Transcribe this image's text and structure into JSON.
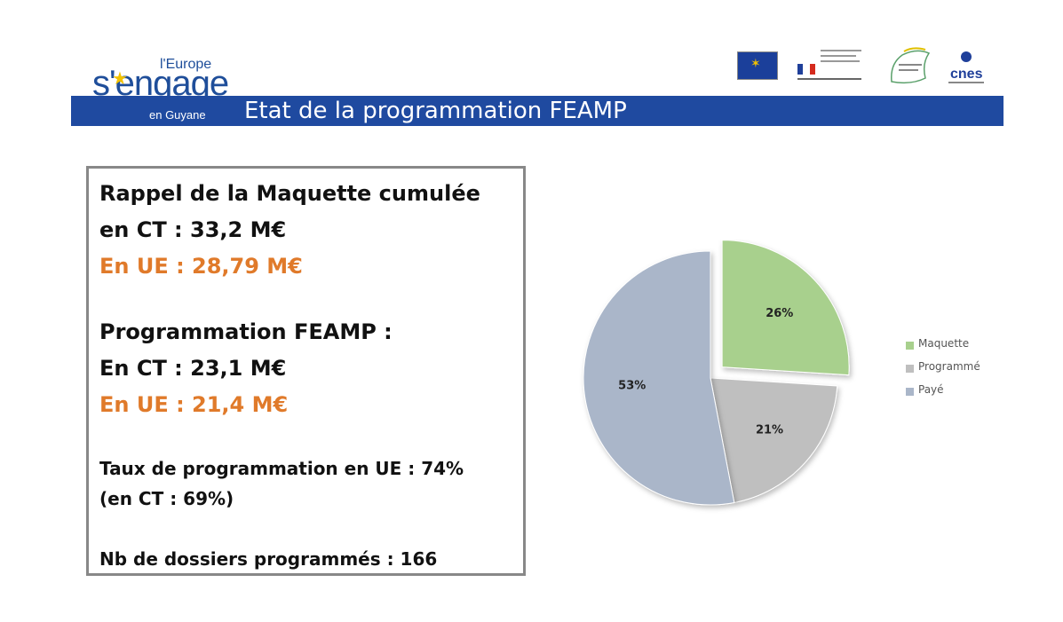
{
  "branding": {
    "logo_europe": "l'Europe",
    "logo_engage": "s'engage",
    "logo_guyane": "en Guyane"
  },
  "header": {
    "title": "Etat de la programmation FEAMP"
  },
  "info": {
    "rappel_title": "Rappel de la Maquette cumulée",
    "rappel_ct": "en CT : 33,2 M€",
    "rappel_ue": "En UE : 28,79 M€",
    "prog_title": "Programmation FEAMP :",
    "prog_ct": "En CT : 23,1 M€",
    "prog_ue": "En UE : 21,4  M€",
    "taux_line1": "Taux de programmation  en UE : 74%",
    "taux_line2": "(en CT : 69%)",
    "dossiers": "Nb de dossiers programmés : 166"
  },
  "chart_data": {
    "type": "pie",
    "title": "",
    "slices": [
      {
        "name": "Maquette",
        "value": 26,
        "label": "26%",
        "color": "#a8d08d"
      },
      {
        "name": "Programmé",
        "value": 21,
        "label": "21%",
        "color": "#bfbfbf"
      },
      {
        "name": "Payé",
        "value": 53,
        "label": "53%",
        "color": "#aab6c9"
      }
    ],
    "legend_position": "right",
    "exploded": [
      "Maquette"
    ]
  }
}
